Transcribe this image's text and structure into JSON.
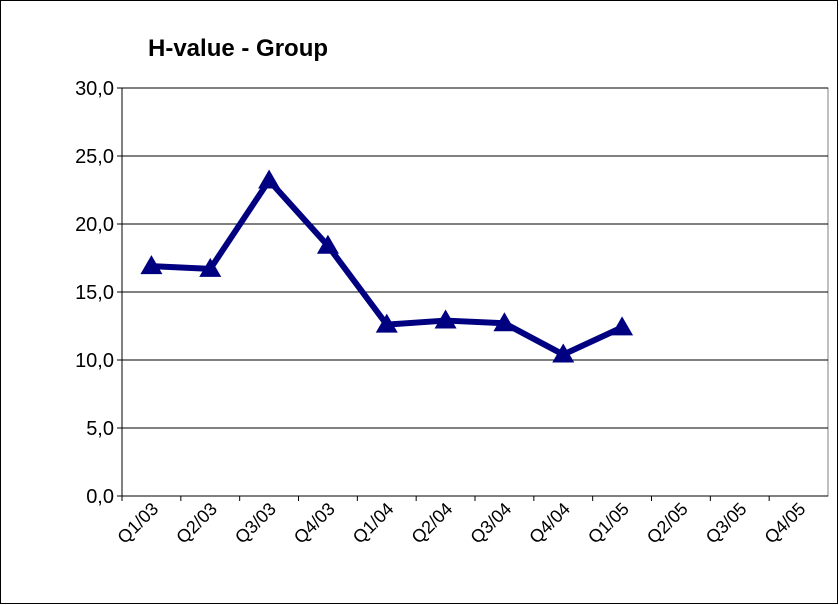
{
  "chart_data": {
    "type": "line",
    "title": "H-value - Group",
    "categories": [
      "Q1/03",
      "Q2/03",
      "Q3/03",
      "Q4/03",
      "Q1/04",
      "Q2/04",
      "Q3/04",
      "Q4/04",
      "Q1/05",
      "Q2/05",
      "Q3/05",
      "Q4/05"
    ],
    "series": [
      {
        "name": "H-value",
        "color": "#000080",
        "values": [
          16.9,
          16.7,
          23.2,
          18.4,
          12.6,
          12.9,
          12.7,
          10.4,
          12.4,
          null,
          null,
          null
        ]
      }
    ],
    "ylim": [
      0,
      30
    ],
    "yticks": [
      {
        "value": 0,
        "label": "0,0"
      },
      {
        "value": 5,
        "label": "5,0"
      },
      {
        "value": 10,
        "label": "10,0"
      },
      {
        "value": 15,
        "label": "15,0"
      },
      {
        "value": 20,
        "label": "20,0"
      },
      {
        "value": 25,
        "label": "25,0"
      },
      {
        "value": 30,
        "label": "30,0"
      }
    ],
    "grid": true
  }
}
